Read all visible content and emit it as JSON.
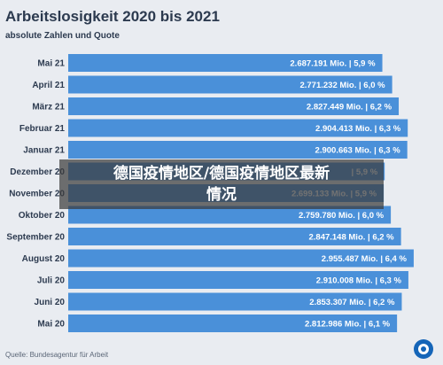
{
  "overlay": {
    "headline": "德国疫情地区/德国疫情地区最新情况"
  },
  "footer": {
    "source": "Quelle: Bundesagentur für Arbeit"
  },
  "logo": {
    "icon": "tagesschau-logo-icon"
  },
  "colors": {
    "bar": "#4a90d9",
    "background": "#e9ecf1",
    "text": "#2c3a4f"
  },
  "chart_data": {
    "type": "bar",
    "orientation": "horizontal",
    "title": "Arbeitslosigkeit 2020 bis 2021",
    "subtitle": "absolute Zahlen und Quote",
    "categories": [
      "Mai 21",
      "April 21",
      "März 21",
      "Februar 21",
      "Januar 21",
      "Dezember 20",
      "November 20",
      "Oktober 20",
      "September 20",
      "August 20",
      "Juli 20",
      "Juni 20",
      "Mai 20"
    ],
    "values": [
      2687191,
      2771232,
      2827449,
      2904413,
      2900663,
      2707000,
      2699133,
      2759780,
      2847148,
      2955487,
      2910008,
      2853307,
      2812986
    ],
    "quota": [
      5.9,
      6.0,
      6.2,
      6.3,
      6.3,
      5.9,
      5.9,
      6.0,
      6.2,
      6.4,
      6.3,
      6.2,
      6.1
    ],
    "labels": [
      "2.687.191 Mio. | 5,9 %",
      "2.771.232 Mio. | 6,0 %",
      "2.827.449 Mio. | 6,2 %",
      "2.904.413 Mio. | 6,3 %",
      "2.900.663 Mio. | 6,3 %",
      "| 5,9 %",
      "2.699.133 Mio. | 5,9 %",
      "2.759.780 Mio. | 6,0 %",
      "2.847.148 Mio. | 6,2 %",
      "2.955.487 Mio. | 6,4 %",
      "2.910.008 Mio. | 6,3 %",
      "2.853.307 Mio. | 6,2 %",
      "2.812.986 Mio. | 6,1 %"
    ],
    "xlim": [
      0,
      3100000
    ],
    "grid": false,
    "legend": "none"
  }
}
